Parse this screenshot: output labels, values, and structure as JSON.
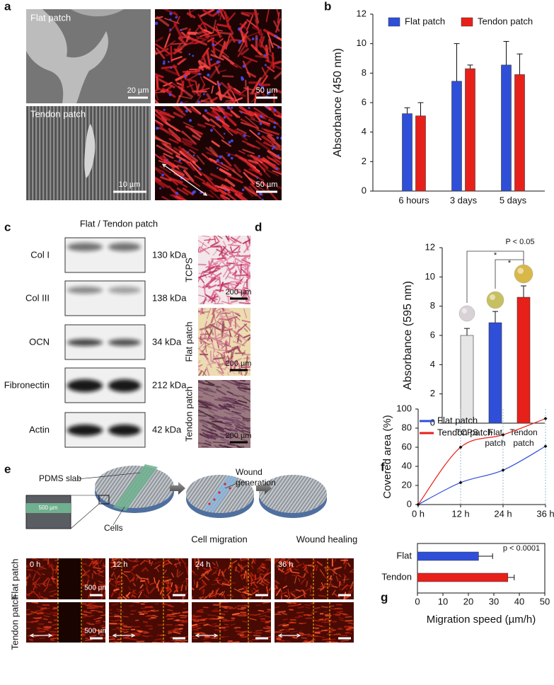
{
  "panel_labels": [
    "a",
    "b",
    "c",
    "d",
    "e",
    "f",
    "g"
  ],
  "panel_a": {
    "labels": [
      "Flat patch",
      "Tendon patch"
    ],
    "scale_bars": [
      "20 µm",
      "50 µm",
      "10 µm",
      "50 µm"
    ]
  },
  "panel_c": {
    "header": "Flat / Tendon patch",
    "rows": [
      {
        "protein": "Col I",
        "size": "130 kDa"
      },
      {
        "protein": "Col III",
        "size": "138 kDa"
      },
      {
        "protein": "OCN",
        "size": "34 kDa"
      },
      {
        "protein": "Fibronectin",
        "size": "212 kDa"
      },
      {
        "protein": "Actin",
        "size": "42 kDa"
      }
    ]
  },
  "panel_d_images": {
    "labels": [
      "TCPS",
      "Flat patch",
      "Tendon patch"
    ],
    "scale_bars": [
      "200 µm",
      "200 µm",
      "200 µm"
    ]
  },
  "panel_e": {
    "diagram_labels": {
      "slab": "PDMS slab",
      "width": "500 µm",
      "cells": "Cells",
      "wound": "Wound generation",
      "migration": "Cell migration",
      "healing": "Wound healing"
    },
    "times": [
      "0 h",
      "12 h",
      "24 h",
      "36 h"
    ],
    "rows": [
      "Flat patch",
      "Tendon patch"
    ],
    "scale_bars": [
      "500 µm",
      "500 µm"
    ]
  },
  "chart_data": [
    {
      "type": "bar",
      "ylabel": "Absorbance (450 nm)",
      "categories": [
        "6 hours",
        "3 days",
        "5 days"
      ],
      "series": [
        {
          "name": "Flat patch",
          "color": "#2f4fd8",
          "values": [
            5.25,
            7.45,
            8.55
          ],
          "errors": [
            0.4,
            2.55,
            1.6
          ]
        },
        {
          "name": "Tendon patch",
          "color": "#e8201a",
          "values": [
            5.1,
            8.3,
            7.9
          ],
          "errors": [
            0.9,
            0.25,
            1.4
          ]
        }
      ],
      "ylim": [
        0,
        12
      ],
      "yticks": [
        0,
        2,
        4,
        6,
        8,
        10,
        12
      ],
      "legend": "top"
    },
    {
      "type": "bar",
      "ylabel": "Absorbance (595 nm)",
      "categories": [
        "TCPS",
        "Flat patch",
        "Tendon patch"
      ],
      "values": [
        6.0,
        6.87,
        8.61
      ],
      "errors": [
        0.48,
        0.77,
        0.78
      ],
      "colors": [
        "#e6e6e6",
        "#2f4fd8",
        "#e8201a"
      ],
      "ylim": [
        0,
        12
      ],
      "yticks": [
        0,
        2,
        4,
        6,
        8,
        10,
        12
      ],
      "annotations": [
        "P < 0.05",
        "*",
        "*"
      ]
    },
    {
      "type": "line",
      "ylabel": "Covered area (%)",
      "x": [
        0,
        12,
        24,
        36
      ],
      "xlim": [
        0,
        36
      ],
      "xticks": [
        {
          "value": 0,
          "label": "0 h"
        },
        {
          "value": 12,
          "label": "12 h"
        },
        {
          "value": 24,
          "label": "24 h"
        },
        {
          "value": 36,
          "label": "36 h"
        }
      ],
      "ylim": [
        0,
        100
      ],
      "yticks": [
        0,
        20,
        40,
        60,
        80,
        100
      ],
      "grid": "x",
      "series": [
        {
          "name": "Flat patch",
          "color": "#2f4fd8",
          "values": [
            0,
            23,
            36,
            61
          ]
        },
        {
          "name": "Tendon patch",
          "color": "#e8201a",
          "values": [
            0,
            60,
            73,
            90
          ]
        }
      ],
      "legend": "upper left"
    },
    {
      "type": "bar",
      "orientation": "horizontal",
      "xlabel": "Migration speed (µm/h)",
      "categories": [
        "Flat",
        "Tendon"
      ],
      "values": [
        24,
        35.5
      ],
      "errors": [
        5.5,
        2.5
      ],
      "colors": [
        "#2f4fd8",
        "#e8201a"
      ],
      "xlim": [
        0,
        50
      ],
      "xticks": [
        0,
        10,
        20,
        30,
        40,
        50
      ],
      "annotations": [
        "p < 0.0001"
      ]
    }
  ]
}
